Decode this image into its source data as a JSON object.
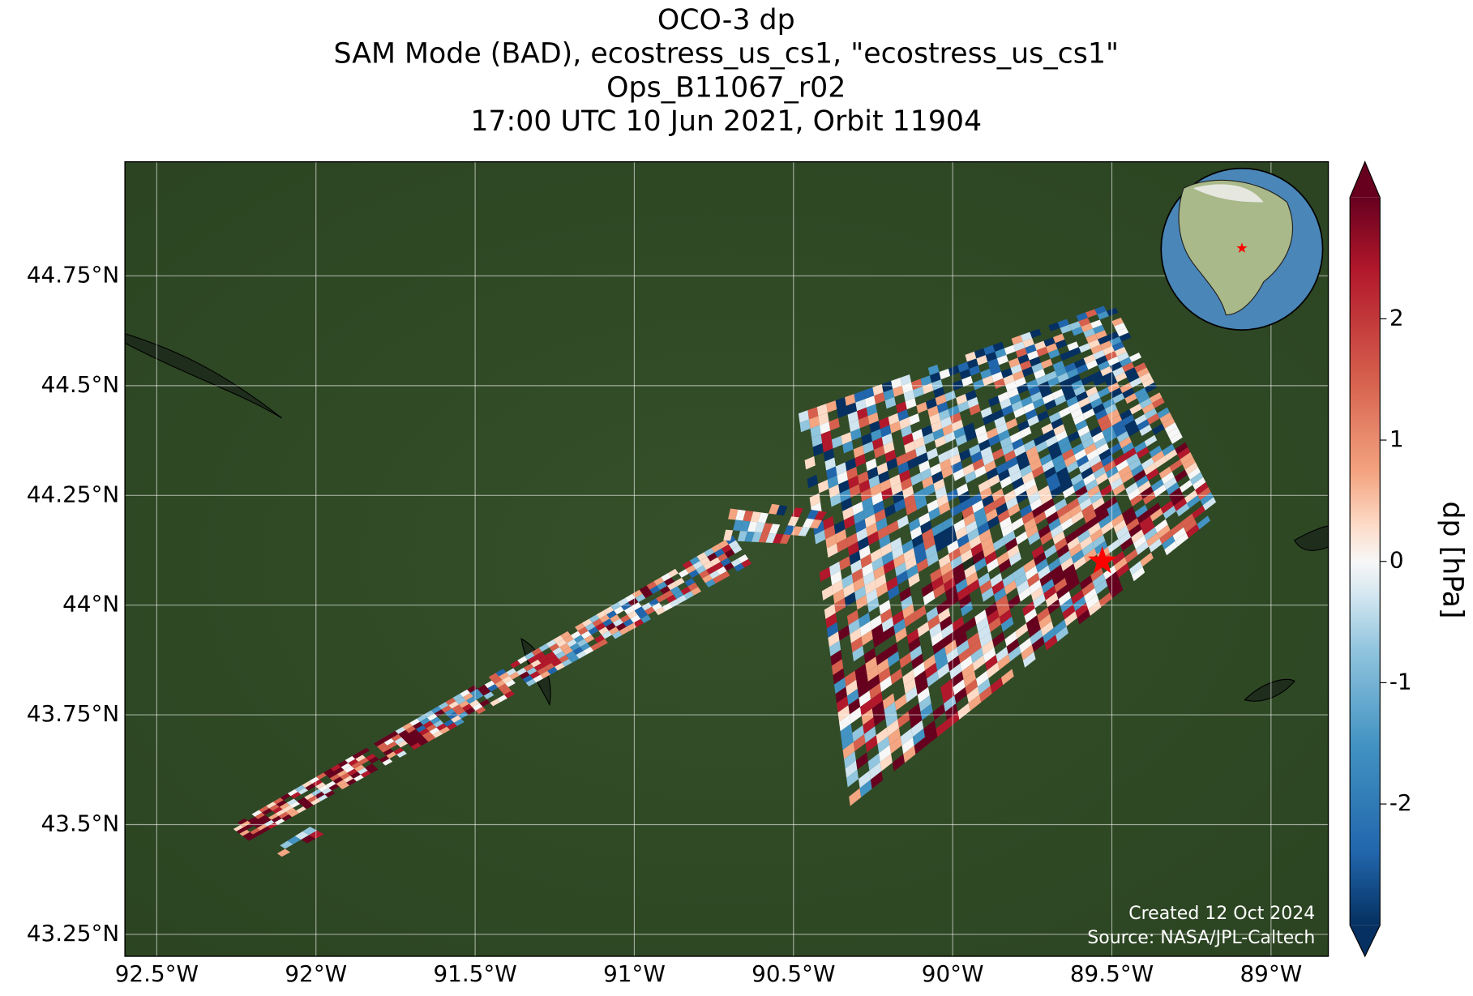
{
  "chart_data": {
    "type": "map",
    "title": [
      "OCO-3 dp",
      "SAM Mode (BAD), ecostress_us_cs1, \"ecostress_us_cs1\"",
      "Ops_B11067_r02",
      "17:00 UTC 10 Jun 2021, Orbit 11904"
    ],
    "xlim": [
      -92.6,
      -88.82
    ],
    "ylim": [
      43.2,
      45.01
    ],
    "xticks": [
      {
        "value": -92.5,
        "label": "92.5°W"
      },
      {
        "value": -92,
        "label": "92°W"
      },
      {
        "value": -91.5,
        "label": "91.5°W"
      },
      {
        "value": -91,
        "label": "91°W"
      },
      {
        "value": -90.5,
        "label": "90.5°W"
      },
      {
        "value": -90,
        "label": "90°W"
      },
      {
        "value": -89.5,
        "label": "89.5°W"
      },
      {
        "value": -89,
        "label": "89°W"
      }
    ],
    "yticks": [
      {
        "value": 43.25,
        "label": "43.25°N"
      },
      {
        "value": 43.5,
        "label": "43.5°N"
      },
      {
        "value": 43.75,
        "label": "43.75°N"
      },
      {
        "value": 44,
        "label": "44°N"
      },
      {
        "value": 44.25,
        "label": "44.25°N"
      },
      {
        "value": 44.5,
        "label": "44.5°N"
      },
      {
        "value": 44.75,
        "label": "44.75°N"
      }
    ],
    "grid": true,
    "target": {
      "lon": -89.53,
      "lat": 44.1,
      "color": "#ff0000"
    },
    "colorbar": {
      "label": "dp [hPa]",
      "lim": [
        -3,
        3
      ],
      "ticks": [
        -2,
        -1,
        0,
        1,
        2
      ],
      "colormap": "RdBu_r"
    },
    "credits": [
      "Created 12 Oct 2024",
      "Source: NASA/JPL-Caltech"
    ]
  }
}
